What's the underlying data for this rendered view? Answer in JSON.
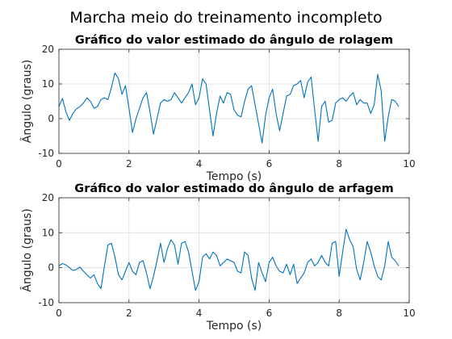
{
  "figure_title": "Marcha meio do treinamento incompleto",
  "colors": {
    "line": "#0072bd",
    "axis": "#262626",
    "grid": "#dcdcdc",
    "background": "#ffffff"
  },
  "chart_data": [
    {
      "type": "line",
      "title": "Gráfico do valor estimado do ângulo de rolagem",
      "xlabel": "Tempo (s)",
      "ylabel": "Ângulo (graus)",
      "xlim": [
        0,
        10
      ],
      "ylim": [
        -10,
        20
      ],
      "xticks": [
        "0",
        "2",
        "4",
        "6",
        "8",
        "10"
      ],
      "yticks": [
        "-10",
        "0",
        "10",
        "20"
      ],
      "grid": true,
      "series": [
        {
          "x": [
            0.0,
            0.1,
            0.2,
            0.3,
            0.4,
            0.5,
            0.6,
            0.7,
            0.8,
            0.9,
            1.0,
            1.1,
            1.2,
            1.3,
            1.4,
            1.5,
            1.6,
            1.7,
            1.8,
            1.9,
            2.0,
            2.1,
            2.2,
            2.3,
            2.4,
            2.5,
            2.6,
            2.7,
            2.8,
            2.9,
            3.0,
            3.1,
            3.2,
            3.3,
            3.4,
            3.5,
            3.6,
            3.7,
            3.8,
            3.9,
            4.0,
            4.1,
            4.2,
            4.3,
            4.4,
            4.5,
            4.6,
            4.7,
            4.8,
            4.9,
            5.0,
            5.1,
            5.2,
            5.3,
            5.4,
            5.5,
            5.6,
            5.7,
            5.8,
            5.9,
            6.0,
            6.1,
            6.2,
            6.3,
            6.4,
            6.5,
            6.6,
            6.7,
            6.8,
            6.9,
            7.0,
            7.1,
            7.2,
            7.3,
            7.4,
            7.5,
            7.6,
            7.7,
            7.8,
            7.9,
            8.0,
            8.1,
            8.2,
            8.3,
            8.4,
            8.5,
            8.6,
            8.7,
            8.8,
            8.9,
            9.0,
            9.1,
            9.2,
            9.3,
            9.4,
            9.5,
            9.6,
            9.7
          ],
          "y": [
            3.5,
            5.8,
            2.0,
            -0.5,
            1.5,
            2.8,
            3.5,
            4.5,
            6.0,
            5.0,
            3.0,
            3.5,
            5.5,
            6.0,
            5.5,
            9.0,
            13.2,
            11.5,
            7.0,
            9.5,
            3.0,
            -4.0,
            0.0,
            3.0,
            6.0,
            7.5,
            2.0,
            -4.5,
            0.0,
            4.5,
            5.5,
            5.0,
            5.5,
            7.5,
            6.0,
            4.5,
            6.0,
            7.5,
            10.0,
            4.0,
            6.0,
            11.5,
            10.0,
            2.5,
            -5.0,
            1.5,
            6.5,
            4.5,
            7.5,
            7.0,
            2.5,
            1.0,
            0.5,
            5.0,
            8.5,
            9.5,
            4.0,
            -1.5,
            -7.0,
            1.0,
            6.0,
            8.5,
            1.5,
            -3.5,
            1.5,
            6.5,
            7.0,
            9.5,
            10.0,
            11.0,
            6.0,
            10.5,
            12.0,
            2.5,
            -6.5,
            3.5,
            5.0,
            -1.0,
            -0.5,
            4.5,
            5.5,
            6.0,
            5.0,
            6.5,
            7.5,
            4.0,
            5.5,
            4.5,
            4.5,
            1.5,
            4.0,
            12.8,
            8.0,
            -6.5,
            0.5,
            5.5,
            5.0,
            3.5
          ]
        }
      ]
    },
    {
      "type": "line",
      "title": "Gráfico do valor estimado do ângulo de arfagem",
      "xlabel": "Tempo (s)",
      "ylabel": "Ângulo (graus)",
      "xlim": [
        0,
        10
      ],
      "ylim": [
        -10,
        20
      ],
      "xticks": [
        "0",
        "2",
        "4",
        "6",
        "8",
        "10"
      ],
      "yticks": [
        "-10",
        "0",
        "10",
        "20"
      ],
      "grid": true,
      "series": [
        {
          "x": [
            0.0,
            0.1,
            0.2,
            0.3,
            0.4,
            0.5,
            0.6,
            0.7,
            0.8,
            0.9,
            1.0,
            1.1,
            1.2,
            1.3,
            1.4,
            1.5,
            1.6,
            1.7,
            1.8,
            1.9,
            2.0,
            2.1,
            2.2,
            2.3,
            2.4,
            2.5,
            2.6,
            2.7,
            2.8,
            2.9,
            3.0,
            3.1,
            3.2,
            3.3,
            3.4,
            3.5,
            3.6,
            3.7,
            3.8,
            3.9,
            4.0,
            4.1,
            4.2,
            4.3,
            4.4,
            4.5,
            4.6,
            4.7,
            4.8,
            4.9,
            5.0,
            5.1,
            5.2,
            5.3,
            5.4,
            5.5,
            5.6,
            5.7,
            5.8,
            5.9,
            6.0,
            6.1,
            6.2,
            6.3,
            6.4,
            6.5,
            6.6,
            6.7,
            6.8,
            6.9,
            7.0,
            7.1,
            7.2,
            7.3,
            7.4,
            7.5,
            7.6,
            7.7,
            7.8,
            7.9,
            8.0,
            8.1,
            8.2,
            8.3,
            8.4,
            8.5,
            8.6,
            8.7,
            8.8,
            8.9,
            9.0,
            9.1,
            9.2,
            9.3,
            9.4,
            9.5,
            9.6,
            9.7
          ],
          "y": [
            0.5,
            1.2,
            0.8,
            0.0,
            -0.8,
            -0.5,
            0.2,
            -1.0,
            -2.0,
            -3.0,
            -2.0,
            -4.5,
            -6.0,
            0.5,
            6.5,
            7.0,
            3.0,
            -2.0,
            -3.5,
            -1.0,
            1.5,
            -1.0,
            -2.0,
            1.5,
            2.0,
            -1.5,
            -6.0,
            -2.5,
            2.0,
            7.0,
            1.5,
            5.5,
            8.0,
            6.5,
            1.0,
            7.0,
            7.5,
            4.5,
            -1.0,
            -6.5,
            -4.0,
            3.0,
            4.0,
            2.5,
            4.5,
            3.5,
            0.5,
            1.5,
            2.5,
            2.0,
            1.5,
            -1.0,
            -1.5,
            4.5,
            3.5,
            -3.0,
            -6.5,
            1.5,
            -1.5,
            -4.0,
            1.5,
            3.0,
            0.5,
            -1.0,
            -1.5,
            1.0,
            -2.0,
            1.0,
            -4.5,
            -3.0,
            -1.5,
            1.5,
            2.5,
            0.5,
            1.5,
            3.5,
            1.5,
            0.5,
            7.0,
            7.5,
            -2.5,
            4.5,
            11.0,
            8.0,
            6.0,
            -0.5,
            -3.5,
            1.5,
            7.5,
            4.5,
            0.5,
            -2.5,
            -3.5,
            0.5,
            7.5,
            3.0,
            2.0,
            0.5
          ]
        }
      ]
    }
  ]
}
